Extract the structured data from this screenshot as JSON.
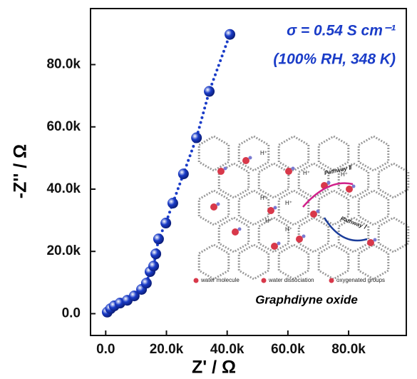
{
  "chart_data": {
    "type": "scatter",
    "x_label": "Z' / Ω",
    "y_label": "-Z'' / Ω",
    "annotations": [
      "σ = 0.54 S cm⁻¹",
      "(100% RH, 348 K)"
    ],
    "color": "#1a3cc8",
    "x": [
      500,
      1600,
      2800,
      4700,
      7100,
      9400,
      11800,
      13400,
      14600,
      15800,
      16500,
      17400,
      19800,
      22100,
      25600,
      29900,
      34100,
      40900
    ],
    "y": [
      500,
      1600,
      2500,
      3400,
      4300,
      5700,
      7800,
      9800,
      13500,
      15300,
      19200,
      24000,
      29100,
      35500,
      44900,
      56500,
      71400,
      89700
    ],
    "xlim": [
      -5000,
      99000
    ],
    "ylim": [
      -7000,
      98000
    ],
    "xticks": [
      {
        "value": 0,
        "label": "0.0"
      },
      {
        "value": 20000,
        "label": "20.0k"
      },
      {
        "value": 40000,
        "label": "40.0k"
      },
      {
        "value": 60000,
        "label": "60.0k"
      },
      {
        "value": 80000,
        "label": "80.0k"
      }
    ],
    "yticks": [
      {
        "value": 0,
        "label": "0.0"
      },
      {
        "value": 20000,
        "label": "20.0k"
      },
      {
        "value": 40000,
        "label": "40.0k"
      },
      {
        "value": 60000,
        "label": "60.0k"
      },
      {
        "value": 80000,
        "label": "80.0k"
      }
    ]
  },
  "inset": {
    "caption": "Graphdiyne oxide",
    "proton": "H⁺",
    "pathway_2": "Pathway Ⅱ",
    "pathway_1": "Pathway Ⅰ",
    "legend": [
      "water molecule",
      "water dissociation",
      "oxygenated groups"
    ]
  }
}
